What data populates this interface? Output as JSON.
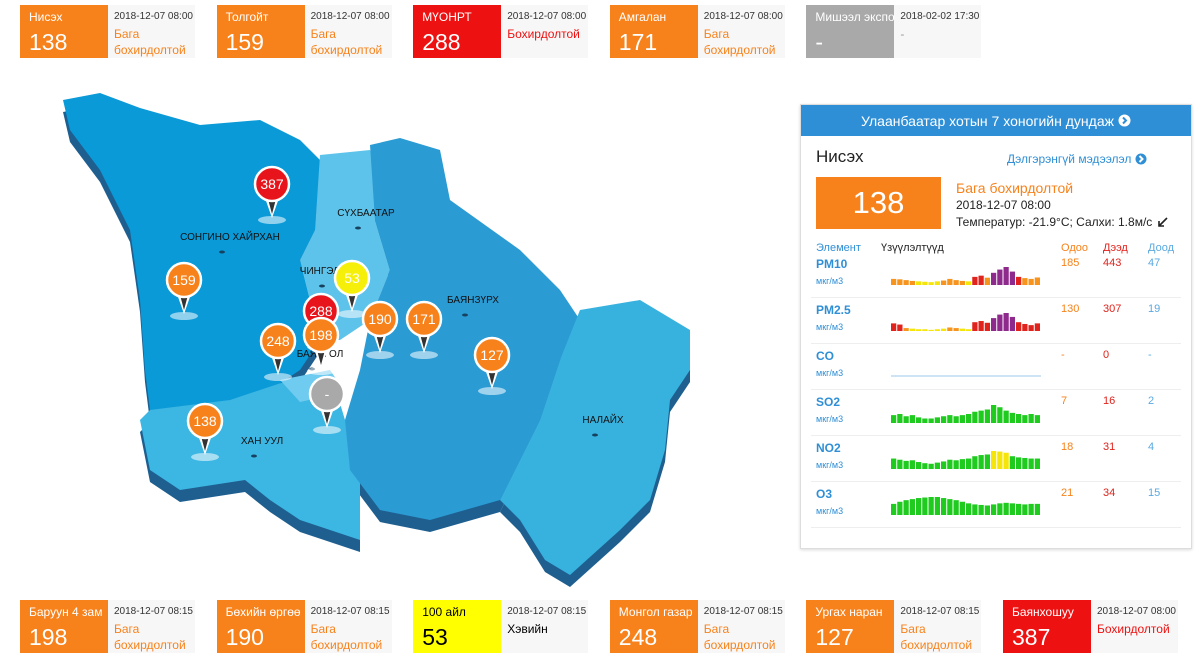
{
  "top_stations": [
    {
      "name": "Нисэх",
      "value": 138,
      "time": "2018-12-07 08:00",
      "status": "Бага бохирдолтой",
      "color": "#f7821b",
      "text_color": "#ffffff",
      "status_color": "#f7821b"
    },
    {
      "name": "Толгойт",
      "value": 159,
      "time": "2018-12-07 08:00",
      "status": "Бага бохирдолтой",
      "color": "#f7821b",
      "text_color": "#ffffff",
      "status_color": "#f7821b"
    },
    {
      "name": "МҮОНРТ",
      "value": 288,
      "time": "2018-12-07 08:00",
      "status": "Бохирдолтой",
      "color": "#ee1111",
      "text_color": "#ffffff",
      "status_color": "#ee1111"
    },
    {
      "name": "Амгалан",
      "value": 171,
      "time": "2018-12-07 08:00",
      "status": "Бага бохирдолтой",
      "color": "#f7821b",
      "text_color": "#ffffff",
      "status_color": "#f7821b"
    },
    {
      "name": "Мишээл экспо",
      "value": "-",
      "time": "2018-02-02 17:30",
      "status": "-",
      "color": "#a9a9a9",
      "text_color": "#ffffff",
      "status_color": "#999999"
    }
  ],
  "map": {
    "districts": [
      "СОНГИНО ХАЙРХАН",
      "СҮХБААТАР",
      "ЧИНГЭЛТЭЙ",
      "БАЯНЗҮРХ",
      "БАЯНГОЛ",
      "ХАН УУЛ",
      "НАЛАЙХ"
    ],
    "markers": [
      {
        "value": 387,
        "color": "#e8141b"
      },
      {
        "value": 159,
        "color": "#f7821b"
      },
      {
        "value": 53,
        "color": "#f5ef0a"
      },
      {
        "value": 288,
        "color": "#e8141b"
      },
      {
        "value": 248,
        "color": "#f7821b"
      },
      {
        "value": 198,
        "color": "#f7821b"
      },
      {
        "value": 190,
        "color": "#f7821b"
      },
      {
        "value": 171,
        "color": "#f7821b"
      },
      {
        "value": 127,
        "color": "#f7821b"
      },
      {
        "value": "-",
        "color": "#a9a9a9"
      },
      {
        "value": 138,
        "color": "#f7821b"
      }
    ]
  },
  "panel": {
    "title": "Улаанбаатар хотын 7 хоногийн дундаж",
    "station": "Нисэх",
    "link": "Дэлгэрэнгүй мэдээлэл",
    "value": 138,
    "color": "#f7821b",
    "status": "Бага бохирдолтой",
    "time": "2018-12-07 08:00",
    "weather": "Температур: -21.9°C; Салхи: 1.8м/с",
    "columns": [
      "Элемент",
      "Үзүүлэлтүүд",
      "Одоо",
      "Дээд",
      "Доод"
    ],
    "rows": [
      {
        "name": "PM10",
        "unit": "мкг/м3",
        "now": 185,
        "high": 443,
        "low": 47,
        "spark": [
          150,
          140,
          120,
          100,
          90,
          80,
          70,
          90,
          110,
          150,
          120,
          100,
          90,
          200,
          230,
          180,
          300,
          380,
          443,
          330,
          200,
          170,
          150,
          185
        ],
        "spark_colors": [
          "#f7941d",
          "#f7941d",
          "#f7941d",
          "#f7941d",
          "#f5e50a",
          "#f5e50a",
          "#f5e50a",
          "#f5e50a",
          "#f7941d",
          "#f7941d",
          "#f7941d",
          "#f7941d",
          "#f5e50a",
          "#e0231c",
          "#e0231c",
          "#f7941d",
          "#8e2a8c",
          "#8e2a8c",
          "#8e2a8c",
          "#8e2a8c",
          "#e0231c",
          "#f7941d",
          "#f7941d",
          "#f7941d"
        ]
      },
      {
        "name": "PM2.5",
        "unit": "мкг/м3",
        "now": 130,
        "high": 307,
        "low": 19,
        "spark": [
          130,
          110,
          50,
          40,
          30,
          30,
          20,
          30,
          40,
          60,
          50,
          40,
          30,
          150,
          170,
          140,
          220,
          280,
          307,
          240,
          150,
          120,
          100,
          130
        ],
        "spark_colors": [
          "#e0231c",
          "#e0231c",
          "#f7941d",
          "#f5e50a",
          "#f5e50a",
          "#f5e50a",
          "#f5e50a",
          "#f5e50a",
          "#f5e50a",
          "#f7941d",
          "#f7941d",
          "#f5e50a",
          "#f5e50a",
          "#e0231c",
          "#e0231c",
          "#e0231c",
          "#8e2a8c",
          "#8e2a8c",
          "#8e2a8c",
          "#8e2a8c",
          "#e0231c",
          "#e0231c",
          "#e0231c",
          "#e0231c"
        ]
      },
      {
        "name": "CO",
        "unit": "мкг/м3",
        "now": "-",
        "high": 0,
        "low": "-"
      },
      {
        "name": "SO2",
        "unit": "мкг/м3",
        "now": 7,
        "high": 16,
        "low": 2,
        "spark": [
          7,
          8,
          6,
          7,
          5,
          4,
          4,
          5,
          6,
          7,
          6,
          7,
          8,
          10,
          11,
          12,
          16,
          14,
          11,
          9,
          8,
          7,
          8,
          7
        ],
        "spark_colors": [
          "#1ecb1e",
          "#1ecb1e",
          "#1ecb1e",
          "#1ecb1e",
          "#1ecb1e",
          "#1ecb1e",
          "#1ecb1e",
          "#1ecb1e",
          "#1ecb1e",
          "#1ecb1e",
          "#1ecb1e",
          "#1ecb1e",
          "#1ecb1e",
          "#1ecb1e",
          "#1ecb1e",
          "#1ecb1e",
          "#1ecb1e",
          "#1ecb1e",
          "#1ecb1e",
          "#1ecb1e",
          "#1ecb1e",
          "#1ecb1e",
          "#1ecb1e",
          "#1ecb1e"
        ]
      },
      {
        "name": "NO2",
        "unit": "мкг/м3",
        "now": 18,
        "high": 31,
        "low": 4,
        "spark": [
          18,
          16,
          14,
          15,
          12,
          10,
          9,
          11,
          13,
          16,
          15,
          17,
          18,
          22,
          24,
          25,
          31,
          30,
          28,
          22,
          20,
          19,
          18,
          18
        ],
        "spark_colors": [
          "#1ecb1e",
          "#1ecb1e",
          "#1ecb1e",
          "#1ecb1e",
          "#1ecb1e",
          "#1ecb1e",
          "#1ecb1e",
          "#1ecb1e",
          "#1ecb1e",
          "#1ecb1e",
          "#1ecb1e",
          "#1ecb1e",
          "#1ecb1e",
          "#1ecb1e",
          "#1ecb1e",
          "#1ecb1e",
          "#f5e50a",
          "#f5e50a",
          "#f5e50a",
          "#1ecb1e",
          "#1ecb1e",
          "#1ecb1e",
          "#1ecb1e",
          "#1ecb1e"
        ]
      },
      {
        "name": "O3",
        "unit": "мкг/м3",
        "now": 21,
        "high": 34,
        "low": 15,
        "spark": [
          21,
          25,
          28,
          30,
          32,
          33,
          34,
          34,
          32,
          30,
          28,
          25,
          22,
          20,
          19,
          18,
          20,
          22,
          23,
          22,
          21,
          20,
          21,
          21
        ],
        "spark_colors": [
          "#1ecb1e",
          "#1ecb1e",
          "#1ecb1e",
          "#1ecb1e",
          "#1ecb1e",
          "#1ecb1e",
          "#1ecb1e",
          "#1ecb1e",
          "#1ecb1e",
          "#1ecb1e",
          "#1ecb1e",
          "#1ecb1e",
          "#1ecb1e",
          "#1ecb1e",
          "#1ecb1e",
          "#1ecb1e",
          "#1ecb1e",
          "#1ecb1e",
          "#1ecb1e",
          "#1ecb1e",
          "#1ecb1e",
          "#1ecb1e",
          "#1ecb1e",
          "#1ecb1e"
        ]
      }
    ]
  },
  "bottom_stations": [
    {
      "name": "Баруун 4 зам",
      "value": 198,
      "time": "2018-12-07 08:15",
      "status": "Бага бохирдолтой",
      "color": "#f7821b",
      "text_color": "#ffffff",
      "status_color": "#f7821b"
    },
    {
      "name": "Бөхийн өргөө",
      "value": 190,
      "time": "2018-12-07 08:15",
      "status": "Бага бохирдолтой",
      "color": "#f7821b",
      "text_color": "#ffffff",
      "status_color": "#f7821b"
    },
    {
      "name": "100 айл",
      "value": 53,
      "time": "2018-12-07 08:15",
      "status": "Хэвийн",
      "color": "#ffff00",
      "text_color": "#000000",
      "status_color": "#000000"
    },
    {
      "name": "Монгол газар",
      "value": 248,
      "time": "2018-12-07 08:15",
      "status": "Бага бохирдолтой",
      "color": "#f7821b",
      "text_color": "#ffffff",
      "status_color": "#f7821b"
    },
    {
      "name": "Ургах наран",
      "value": 127,
      "time": "2018-12-07 08:15",
      "status": "Бага бохирдолтой",
      "color": "#f7821b",
      "text_color": "#ffffff",
      "status_color": "#f7821b"
    },
    {
      "name": "Баянхошуу",
      "value": 387,
      "time": "2018-12-07 08:00",
      "status": "Бохирдолтой",
      "color": "#ee1111",
      "text_color": "#ffffff",
      "status_color": "#ee1111"
    }
  ]
}
